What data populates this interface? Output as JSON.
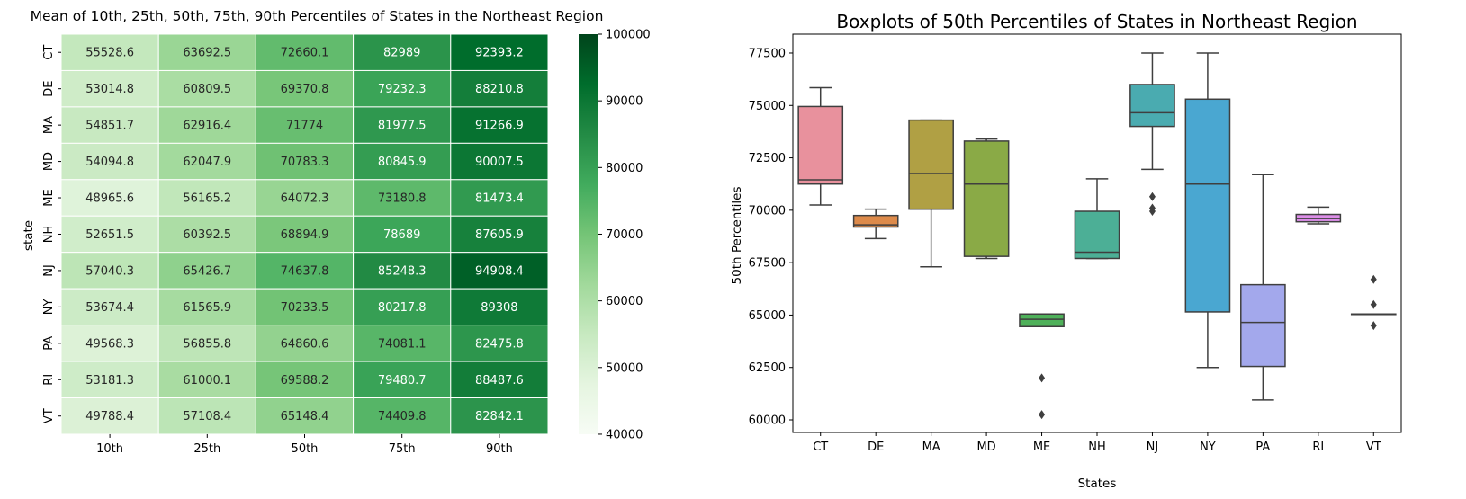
{
  "chart_data": [
    {
      "type": "heatmap",
      "title": "Mean of 10th, 25th, 50th, 75th, 90th Percentiles of States in the Northeast Region",
      "ylabel": "state",
      "xlabel": "",
      "rows": [
        "CT",
        "DE",
        "MA",
        "MD",
        "ME",
        "NH",
        "NJ",
        "NY",
        "PA",
        "RI",
        "VT"
      ],
      "columns": [
        "10th",
        "25th",
        "50th",
        "75th",
        "90th"
      ],
      "values": [
        [
          55528.6,
          63692.5,
          72660.1,
          82989,
          92393.2
        ],
        [
          53014.8,
          60809.5,
          69370.8,
          79232.3,
          88210.8
        ],
        [
          54851.7,
          62916.4,
          71774,
          81977.5,
          91266.9
        ],
        [
          54094.8,
          62047.9,
          70783.3,
          80845.9,
          90007.5
        ],
        [
          48965.6,
          56165.2,
          64072.3,
          73180.8,
          81473.4
        ],
        [
          52651.5,
          60392.5,
          68894.9,
          78689,
          87605.9
        ],
        [
          57040.3,
          65426.7,
          74637.8,
          85248.3,
          94908.4
        ],
        [
          53674.4,
          61565.9,
          70233.5,
          80217.8,
          89308
        ],
        [
          49568.3,
          56855.8,
          64860.6,
          74081.1,
          82475.8
        ],
        [
          53181.3,
          61000.1,
          69588.2,
          79480.7,
          88487.6
        ],
        [
          49788.4,
          57108.4,
          65148.4,
          74409.8,
          82842.1
        ]
      ],
      "labels": [
        [
          "55528.6",
          "63692.5",
          "72660.1",
          "82989",
          "92393.2"
        ],
        [
          "53014.8",
          "60809.5",
          "69370.8",
          "79232.3",
          "88210.8"
        ],
        [
          "54851.7",
          "62916.4",
          "71774",
          "81977.5",
          "91266.9"
        ],
        [
          "54094.8",
          "62047.9",
          "70783.3",
          "80845.9",
          "90007.5"
        ],
        [
          "48965.6",
          "56165.2",
          "64072.3",
          "73180.8",
          "81473.4"
        ],
        [
          "52651.5",
          "60392.5",
          "68894.9",
          "78689",
          "87605.9"
        ],
        [
          "57040.3",
          "65426.7",
          "74637.8",
          "85248.3",
          "94908.4"
        ],
        [
          "53674.4",
          "61565.9",
          "70233.5",
          "80217.8",
          "89308"
        ],
        [
          "49568.3",
          "56855.8",
          "64860.6",
          "74081.1",
          "82475.8"
        ],
        [
          "53181.3",
          "61000.1",
          "69588.2",
          "79480.7",
          "88487.6"
        ],
        [
          "49788.4",
          "57108.4",
          "65148.4",
          "74409.8",
          "82842.1"
        ]
      ],
      "colorbar": {
        "min": 40000,
        "max": 100000,
        "ticks": [
          40000,
          50000,
          60000,
          70000,
          80000,
          90000,
          100000
        ],
        "tick_labels": [
          "40000",
          "50000",
          "60000",
          "70000",
          "80000",
          "90000",
          "100000"
        ],
        "colormap": "Greens",
        "color_stops": [
          "#f7fcf5",
          "#e5f5e0",
          "#c7e9c0",
          "#a1d99b",
          "#74c476",
          "#41ab5d",
          "#238b45",
          "#006d2c",
          "#00441b"
        ]
      }
    },
    {
      "type": "boxplot",
      "title": "Boxplots of 50th Percentiles of States in Northeast Region",
      "xlabel": "States",
      "ylabel": "50th Percentiles",
      "ylim": [
        59400,
        78400
      ],
      "y_ticks": [
        60000,
        62500,
        65000,
        67500,
        70000,
        72500,
        75000,
        77500
      ],
      "y_tick_labels": [
        "60000",
        "62500",
        "65000",
        "67500",
        "70000",
        "72500",
        "75000",
        "77500"
      ],
      "categories": [
        "CT",
        "DE",
        "MA",
        "MD",
        "ME",
        "NH",
        "NJ",
        "NY",
        "PA",
        "RI",
        "VT"
      ],
      "boxes": [
        {
          "category": "CT",
          "whisker_low": 70250,
          "q1": 71250,
          "median": 71450,
          "q3": 74950,
          "whisker_high": 75850,
          "outliers": [],
          "color": "#e8919d"
        },
        {
          "category": "DE",
          "whisker_low": 68650,
          "q1": 69200,
          "median": 69300,
          "q3": 69750,
          "whisker_high": 70050,
          "outliers": [],
          "color": "#dd8a4a"
        },
        {
          "category": "MA",
          "whisker_low": 67300,
          "q1": 70050,
          "median": 71750,
          "q3": 74300,
          "whisker_high": 74300,
          "outliers": [],
          "color": "#b0a044"
        },
        {
          "category": "MD",
          "whisker_low": 67700,
          "q1": 67800,
          "median": 71250,
          "q3": 73300,
          "whisker_high": 73400,
          "outliers": [],
          "color": "#8aaa46"
        },
        {
          "category": "ME",
          "whisker_low": 64450,
          "q1": 64450,
          "median": 64800,
          "q3": 65050,
          "whisker_high": 65050,
          "outliers": [
            62000,
            60250
          ],
          "color": "#4fb15a"
        },
        {
          "category": "NH",
          "whisker_low": 67700,
          "q1": 67700,
          "median": 68000,
          "q3": 69950,
          "whisker_high": 71500,
          "outliers": [],
          "color": "#4caf96"
        },
        {
          "category": "NJ",
          "whisker_low": 71950,
          "q1": 74000,
          "median": 74650,
          "q3": 76000,
          "whisker_high": 77500,
          "outliers": [
            70650,
            70100,
            69950
          ],
          "color": "#4aabb0"
        },
        {
          "category": "NY",
          "whisker_low": 62500,
          "q1": 65150,
          "median": 71250,
          "q3": 75300,
          "whisker_high": 77500,
          "outliers": [],
          "color": "#4aa7d1"
        },
        {
          "category": "PA",
          "whisker_low": 60950,
          "q1": 62550,
          "median": 64650,
          "q3": 66450,
          "whisker_high": 71700,
          "outliers": [],
          "color": "#a3a8ec"
        },
        {
          "category": "RI",
          "whisker_low": 69350,
          "q1": 69450,
          "median": 69600,
          "q3": 69800,
          "whisker_high": 70150,
          "outliers": [],
          "color": "#dc8ee8"
        },
        {
          "category": "VT",
          "whisker_low": 65050,
          "q1": 65050,
          "median": 65050,
          "q3": 65050,
          "whisker_high": 65050,
          "outliers": [
            66700,
            65500,
            64500
          ],
          "color": "#e88cc4"
        }
      ]
    }
  ]
}
